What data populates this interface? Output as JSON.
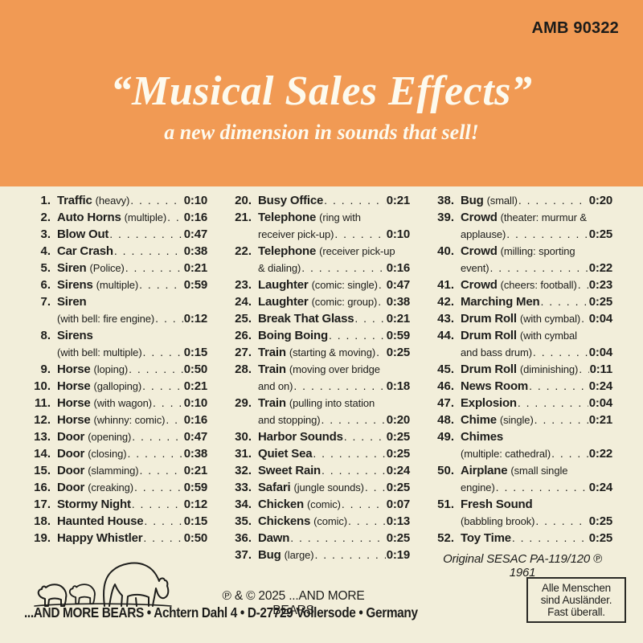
{
  "catalog_number": "AMB 90322",
  "title": "“Musical Sales Effects”",
  "subtitle": "a new dimension in sounds that sell!",
  "colors": {
    "header_bg": "#f19a54",
    "body_bg": "#f2eeda",
    "text": "#1d1d1b",
    "title_text": "#fdfaee"
  },
  "tracklist": {
    "col1": [
      {
        "num": "1.",
        "name": "Traffic",
        "detail": "(heavy)",
        "time": "0:10"
      },
      {
        "num": "2.",
        "name": "Auto Horns",
        "detail": "(multiple)",
        "time": "0:16"
      },
      {
        "num": "3.",
        "name": "Blow Out",
        "detail": "",
        "time": "0:47"
      },
      {
        "num": "4.",
        "name": "Car Crash",
        "detail": "",
        "time": "0:38"
      },
      {
        "num": "5.",
        "name": "Siren",
        "detail": "(Police)",
        "time": "0:21"
      },
      {
        "num": "6.",
        "name": "Sirens",
        "detail": "(multiple)",
        "time": "0:59"
      },
      {
        "num": "7.",
        "name": "Siren",
        "detail": "",
        "line2": "(with bell: fire engine)",
        "time": "0:12"
      },
      {
        "num": "8.",
        "name": "Sirens",
        "detail": "",
        "line2": "(with bell: multiple)",
        "time": "0:15"
      },
      {
        "num": "9.",
        "name": "Horse",
        "detail": "(loping)",
        "time": "0:50"
      },
      {
        "num": "10.",
        "name": "Horse",
        "detail": "(galloping)",
        "time": "0:21"
      },
      {
        "num": "11.",
        "name": "Horse",
        "detail": "(with wagon)",
        "time": "0:10"
      },
      {
        "num": "12.",
        "name": "Horse",
        "detail": "(whinny: comic)",
        "time": "0:16"
      },
      {
        "num": "13.",
        "name": "Door",
        "detail": "(opening)",
        "time": "0:47"
      },
      {
        "num": "14.",
        "name": "Door",
        "detail": "(closing)",
        "time": "0:38"
      },
      {
        "num": "15.",
        "name": "Door",
        "detail": "(slamming)",
        "time": "0:21"
      },
      {
        "num": "16.",
        "name": "Door",
        "detail": "(creaking)",
        "time": "0:59"
      },
      {
        "num": "17.",
        "name": "Stormy Night",
        "detail": "",
        "time": "0:12"
      },
      {
        "num": "18.",
        "name": "Haunted House",
        "detail": "",
        "time": "0:15"
      },
      {
        "num": "19.",
        "name": "Happy Whistler",
        "detail": "",
        "time": "0:50"
      }
    ],
    "col2": [
      {
        "num": "20.",
        "name": "Busy Office",
        "detail": "",
        "time": "0:21"
      },
      {
        "num": "21.",
        "name": "Telephone",
        "detail": "(ring with",
        "line2": "receiver pick-up)",
        "time": "0:10"
      },
      {
        "num": "22.",
        "name": "Telephone",
        "detail": "(receiver pick-up",
        "line2": "& dialing)",
        "time": "0:16"
      },
      {
        "num": "23.",
        "name": "Laughter",
        "detail": "(comic: single)",
        "time": "0:47"
      },
      {
        "num": "24.",
        "name": "Laughter",
        "detail": "(comic: group)",
        "time": "0:38"
      },
      {
        "num": "25.",
        "name": "Break That Glass",
        "detail": "",
        "time": "0:21"
      },
      {
        "num": "26.",
        "name": "Boing Boing",
        "detail": "",
        "time": "0:59"
      },
      {
        "num": "27.",
        "name": "Train",
        "detail": "(starting & moving)",
        "time": "0:25"
      },
      {
        "num": "28.",
        "name": "Train",
        "detail": "(moving over bridge",
        "line2": "and on)",
        "time": "0:18"
      },
      {
        "num": "29.",
        "name": "Train",
        "detail": "(pulling into station",
        "line2": "and stopping)",
        "time": "0:20"
      },
      {
        "num": "30.",
        "name": "Harbor Sounds",
        "detail": "",
        "time": "0:25"
      },
      {
        "num": "31.",
        "name": "Quiet Sea",
        "detail": "",
        "time": "0:25"
      },
      {
        "num": "32.",
        "name": "Sweet Rain",
        "detail": "",
        "time": "0:24"
      },
      {
        "num": "33.",
        "name": "Safari",
        "detail": "(jungle sounds)",
        "time": "0:25"
      },
      {
        "num": "34.",
        "name": "Chicken",
        "detail": "(comic)",
        "time": "0:07"
      },
      {
        "num": "35.",
        "name": "Chickens",
        "detail": "(comic)",
        "time": "0:13"
      },
      {
        "num": "36.",
        "name": "Dawn",
        "detail": "",
        "time": "0:25"
      },
      {
        "num": "37.",
        "name": "Bug",
        "detail": "(large)",
        "time": "0:19"
      }
    ],
    "col3": [
      {
        "num": "38.",
        "name": "Bug",
        "detail": "(small)",
        "time": "0:20"
      },
      {
        "num": "39.",
        "name": "Crowd",
        "detail": "(theater: murmur &",
        "line2": "applause)",
        "time": "0:25"
      },
      {
        "num": "40.",
        "name": "Crowd",
        "detail": "(milling: sporting",
        "line2": "event)",
        "time": "0:22"
      },
      {
        "num": "41.",
        "name": "Crowd",
        "detail": "(cheers: football)",
        "time": "0:23"
      },
      {
        "num": "42.",
        "name": "Marching Men",
        "detail": "",
        "time": "0:25"
      },
      {
        "num": "43.",
        "name": "Drum Roll",
        "detail": "(with cymbal)",
        "time": "0:04"
      },
      {
        "num": "44.",
        "name": "Drum Roll",
        "detail": "(with cymbal",
        "line2": "and bass drum)",
        "time": "0:04"
      },
      {
        "num": "45.",
        "name": "Drum Roll",
        "detail": "(diminishing)",
        "time": "0:11"
      },
      {
        "num": "46.",
        "name": "News Room",
        "detail": "",
        "time": "0:24"
      },
      {
        "num": "47.",
        "name": "Explosion",
        "detail": "",
        "time": "0:04"
      },
      {
        "num": "48.",
        "name": "Chime",
        "detail": "(single)",
        "time": "0:21"
      },
      {
        "num": "49.",
        "name": "Chimes",
        "detail": "",
        "line2": "(multiple: cathedral)",
        "time": "0:22"
      },
      {
        "num": "50.",
        "name": "Airplane",
        "detail": "(small single",
        "line2": "engine)",
        "time": "0:24"
      },
      {
        "num": "51.",
        "name": "Fresh Sound",
        "detail": "",
        "line2": "(babbling brook)",
        "time": "0:25"
      },
      {
        "num": "52.",
        "name": "Toy Time",
        "detail": "",
        "time": "0:25"
      }
    ]
  },
  "sesac_note": "Original SESAC PA-119/120  ℗  1961",
  "footer": {
    "copyright_line": "℗ & © 2025 ...AND MORE BEARS",
    "address_line": "...AND MORE BEARS • Achtern Dahl 4 •  D-27729 Vollersode • Germany",
    "bears_logo": "bear-family-line-art",
    "quote_line1": "Alle Menschen",
    "quote_line2": "sind Ausländer.",
    "quote_line3": "Fast überall."
  }
}
